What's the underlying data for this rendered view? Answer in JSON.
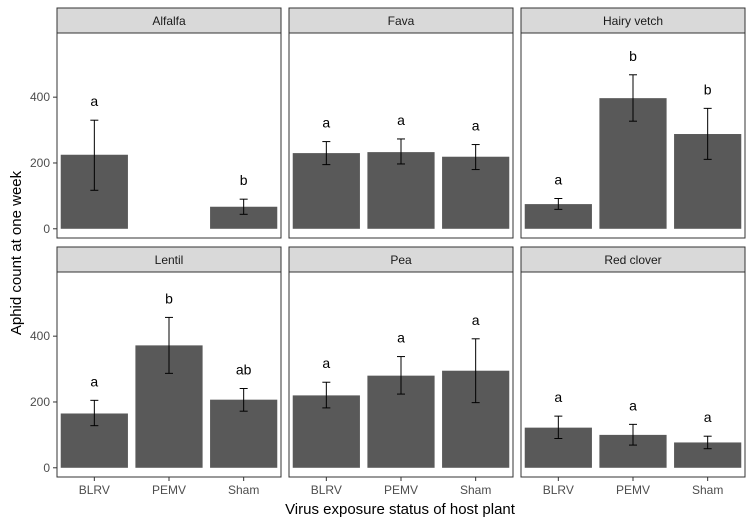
{
  "chart_data": {
    "type": "bar",
    "xlabel": "Virus exposure status of host plant",
    "ylabel": "Aphid count at one week",
    "ylim": [
      -28,
      595
    ],
    "yticks": [
      0,
      200,
      400
    ],
    "categories": [
      "BLRV",
      "PEMV",
      "Sham"
    ],
    "bar_color": "#595959",
    "strip_color": "#d9d9d9",
    "panels": [
      {
        "title": "Alfalfa",
        "values": [
          225,
          null,
          67
        ],
        "err_low": [
          117,
          null,
          44
        ],
        "err_high": [
          330,
          null,
          90
        ],
        "letters": [
          "a",
          "",
          "b"
        ]
      },
      {
        "title": "Fava",
        "values": [
          230,
          233,
          219
        ],
        "err_low": [
          195,
          197,
          180
        ],
        "err_high": [
          265,
          273,
          256
        ],
        "letters": [
          "a",
          "a",
          "a"
        ]
      },
      {
        "title": "Hairy vetch",
        "values": [
          75,
          397,
          288
        ],
        "err_low": [
          59,
          327,
          211
        ],
        "err_high": [
          92,
          468,
          366
        ],
        "letters": [
          "a",
          "b",
          "b"
        ]
      },
      {
        "title": "Lentil",
        "values": [
          165,
          372,
          207
        ],
        "err_low": [
          128,
          287,
          172
        ],
        "err_high": [
          205,
          457,
          241
        ],
        "letters": [
          "a",
          "b",
          "ab"
        ]
      },
      {
        "title": "Pea",
        "values": [
          220,
          280,
          295
        ],
        "err_low": [
          182,
          224,
          198
        ],
        "err_high": [
          260,
          338,
          392
        ],
        "letters": [
          "a",
          "a",
          "a"
        ]
      },
      {
        "title": "Red clover",
        "values": [
          122,
          100,
          77
        ],
        "err_low": [
          89,
          69,
          58
        ],
        "err_high": [
          157,
          132,
          96
        ],
        "letters": [
          "a",
          "a",
          "a"
        ]
      }
    ]
  }
}
